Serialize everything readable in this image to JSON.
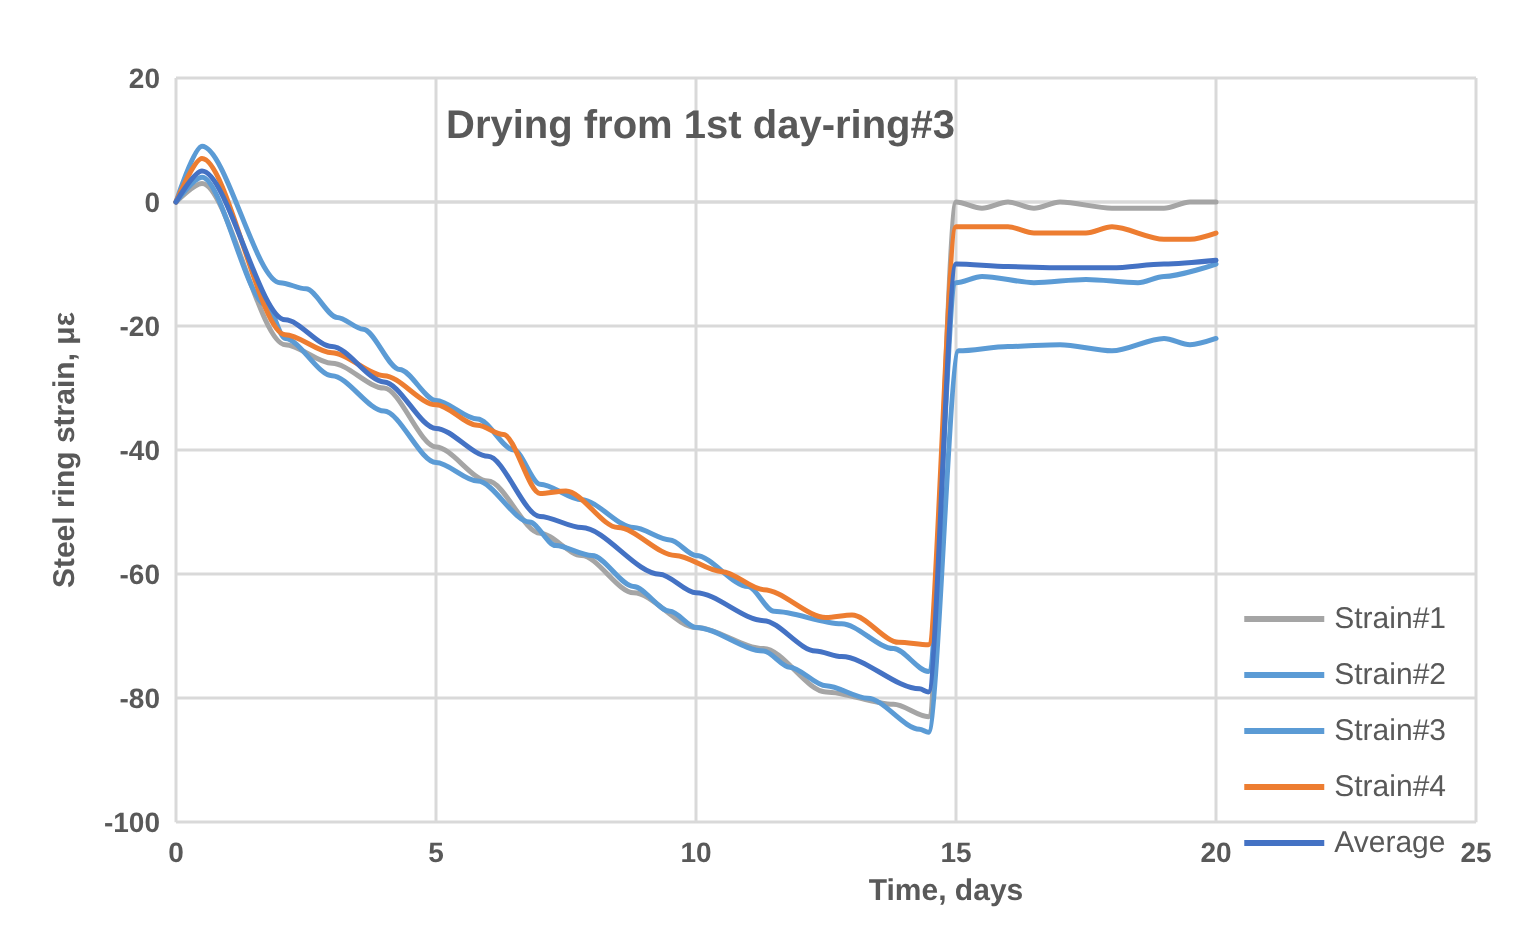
{
  "chart_data": {
    "type": "line",
    "title": "Drying from 1st day-ring#3",
    "xlabel": "Time, days",
    "ylabel": "Steel ring strain, με",
    "xlim": [
      0,
      25
    ],
    "xticks": [
      0,
      5,
      10,
      15,
      20,
      25
    ],
    "ylim": [
      -100,
      20
    ],
    "yticks": [
      -100,
      -80,
      -60,
      -40,
      -20,
      0,
      20
    ],
    "grid": true,
    "legend": "bottom right",
    "marker": "none",
    "line_style": "solid",
    "series": [
      {
        "name": "Strain#1",
        "color": "#a5a5a5",
        "x": [
          0,
          0.5,
          2.1,
          3,
          4,
          5,
          6,
          7,
          7.8,
          8.8,
          10,
          11.3,
          12.5,
          13.8,
          14.47,
          15,
          15.5,
          16,
          16.5,
          17,
          18,
          19,
          19.5,
          20
        ],
        "values": [
          0,
          3,
          -23,
          -26,
          -30,
          -39.5,
          -45,
          -53.4,
          -57,
          -63,
          -68.6,
          -72,
          -79,
          -81,
          -83,
          0,
          -1,
          0,
          -1,
          0,
          -1,
          -1,
          0,
          0
        ]
      },
      {
        "name": "Strain#2",
        "color": "#5b9bd5",
        "x": [
          0,
          0.5,
          2,
          2.5,
          3.1,
          3.6,
          4.3,
          5,
          5.8,
          6.5,
          7,
          7.8,
          8.8,
          9.5,
          10,
          11,
          11.5,
          12.8,
          13.8,
          14.47,
          15,
          15.5,
          16.5,
          17.5,
          18.5,
          19,
          20
        ],
        "values": [
          0,
          9,
          -13,
          -14,
          -18.6,
          -20.5,
          -27,
          -32,
          -35,
          -40,
          -45.5,
          -48,
          -52.5,
          -54.5,
          -57,
          -62,
          -66,
          -68,
          -72,
          -75.7,
          -13,
          -12,
          -13,
          -12.5,
          -13,
          -12,
          -10
        ]
      },
      {
        "name": "Strain#3",
        "color": "#5b9bd5",
        "x": [
          0,
          0.5,
          1.75,
          2.1,
          3,
          4,
          5,
          5.8,
          6.8,
          7.3,
          8,
          8.8,
          9.5,
          10,
          11.3,
          11.8,
          12.5,
          13.3,
          14.3,
          14.47,
          15.05,
          16,
          17,
          18,
          19,
          19.5,
          20
        ],
        "values": [
          0,
          4,
          -16.7,
          -22,
          -28,
          -33.7,
          -42,
          -45,
          -51.6,
          -55.4,
          -57,
          -62,
          -66,
          -68.6,
          -72.4,
          -75,
          -78,
          -80,
          -85,
          -85.5,
          -24,
          -23.3,
          -23,
          -24,
          -22,
          -23,
          -22
        ]
      },
      {
        "name": "Strain#4",
        "color": "#ed7d31",
        "x": [
          0,
          0.5,
          2.1,
          3,
          4,
          5,
          5.8,
          6.3,
          7,
          7.5,
          8.5,
          9.6,
          10.5,
          11.3,
          12.5,
          13,
          13.9,
          14.47,
          15,
          16,
          16.5,
          17.5,
          18,
          19,
          19.5,
          20
        ],
        "values": [
          0,
          7,
          -21.4,
          -24.3,
          -28,
          -32.7,
          -36,
          -37.5,
          -47,
          -46.6,
          -52.5,
          -57,
          -59.6,
          -62.5,
          -67,
          -66.6,
          -71,
          -71.4,
          -4,
          -4,
          -5,
          -5,
          -4,
          -6,
          -6,
          -5
        ]
      },
      {
        "name": "Average",
        "color": "#4472c4",
        "x": [
          0,
          0.5,
          2.1,
          3,
          4,
          5,
          6,
          7,
          7.8,
          9.3,
          10,
          11.3,
          12.3,
          12.8,
          14.3,
          14.47,
          15,
          16,
          17,
          18,
          19,
          20
        ],
        "values": [
          0,
          5,
          -19,
          -23.3,
          -29,
          -36.5,
          -41,
          -50.7,
          -52.5,
          -60,
          -63,
          -67.5,
          -72.4,
          -73.3,
          -78.5,
          -79,
          -10,
          -10.4,
          -10.6,
          -10.6,
          -10,
          -9.4
        ]
      }
    ]
  }
}
